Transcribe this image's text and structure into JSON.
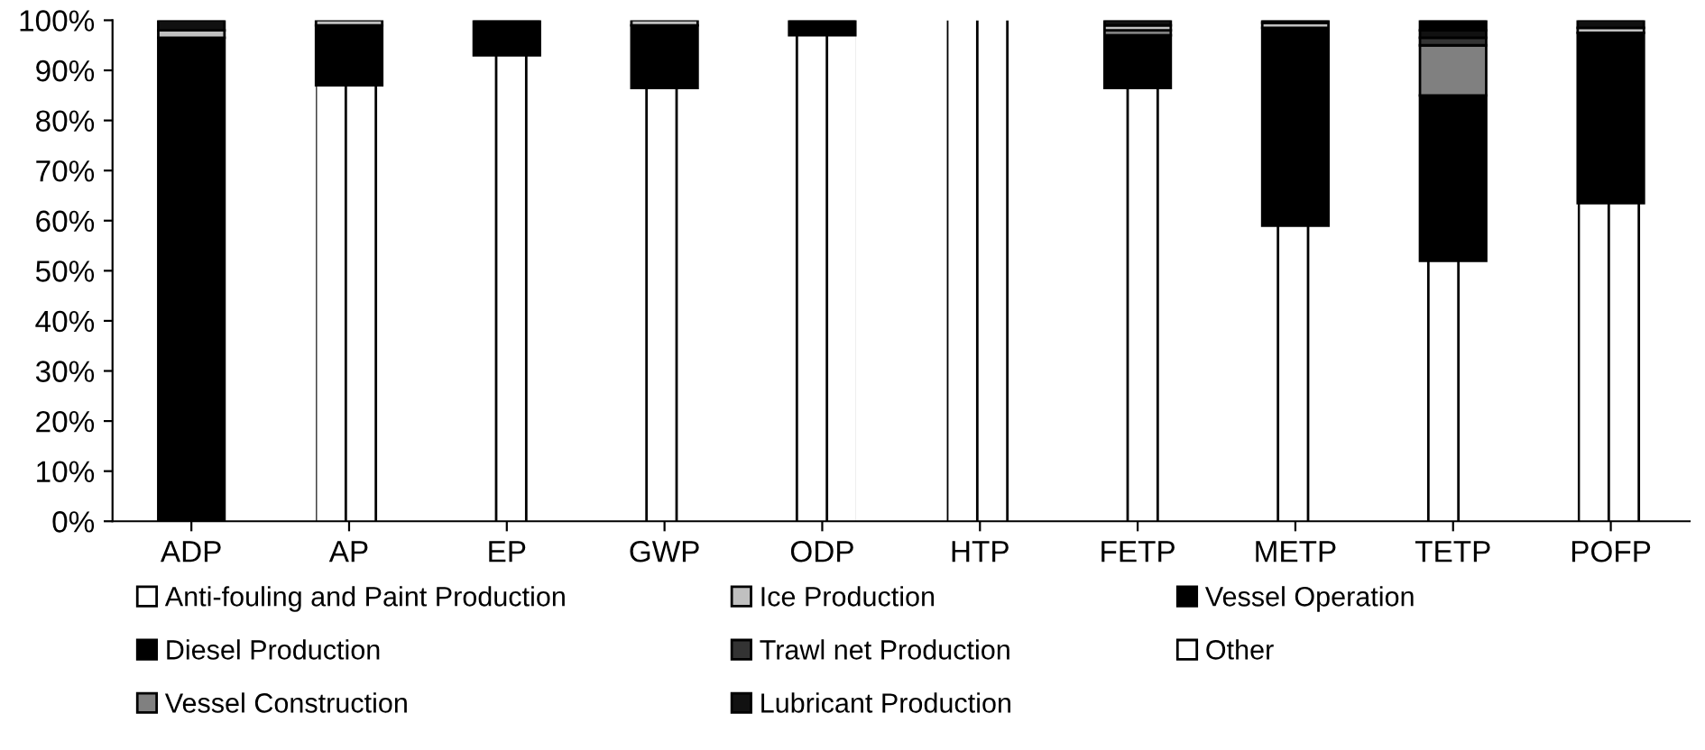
{
  "chart_data": {
    "type": "bar",
    "stacked": true,
    "categories": [
      "ADP",
      "AP",
      "EP",
      "GWP",
      "ODP",
      "HTP",
      "FETP",
      "METP",
      "TETP",
      "POFP"
    ],
    "series": [
      {
        "name": "Anti-fouling and Paint Production",
        "color": "#ffffff",
        "values": [
          0,
          87,
          93,
          86.5,
          97,
          100,
          86.5,
          59,
          52,
          63.5
        ]
      },
      {
        "name": "Diesel Production",
        "color": "#000000",
        "values": [
          96.5,
          12,
          7,
          12.5,
          3,
          0,
          10.5,
          39.5,
          33,
          34
        ]
      },
      {
        "name": "Vessel Construction",
        "color": "#808080",
        "values": [
          0,
          0,
          0,
          0,
          0,
          0,
          1,
          0,
          10,
          0
        ]
      },
      {
        "name": "Ice Production",
        "color": "#c0c0c0",
        "values": [
          1.5,
          1,
          0,
          1,
          0,
          0,
          1,
          1,
          0,
          1
        ]
      },
      {
        "name": "Trawl net Production",
        "color": "#333333",
        "values": [
          0,
          0,
          0,
          0,
          0,
          0,
          0,
          0,
          1.5,
          0
        ]
      },
      {
        "name": "Lubricant Production",
        "color": "#111111",
        "values": [
          2,
          0,
          0,
          0,
          0,
          0,
          1,
          0.5,
          1.5,
          1.5
        ]
      },
      {
        "name": "Vessel Operation",
        "color": "#000000",
        "values": [
          0,
          0,
          0,
          0,
          0,
          0,
          0,
          0,
          2,
          0
        ]
      },
      {
        "name": "Other",
        "color": "#ffffff",
        "values": [
          0,
          0,
          0,
          0,
          0,
          0,
          0,
          0,
          0,
          0
        ]
      }
    ],
    "ylim": [
      0,
      100
    ],
    "yticks": [
      {
        "value": 0,
        "label": "0%"
      },
      {
        "value": 10,
        "label": "10%"
      },
      {
        "value": 20,
        "label": "20%"
      },
      {
        "value": 30,
        "label": "30%"
      },
      {
        "value": 40,
        "label": "40%"
      },
      {
        "value": 50,
        "label": "50%"
      },
      {
        "value": 60,
        "label": "60%"
      },
      {
        "value": 70,
        "label": "70%"
      },
      {
        "value": 80,
        "label": "80%"
      },
      {
        "value": 90,
        "label": "90%"
      },
      {
        "value": 100,
        "label": "100%"
      }
    ],
    "grid": false,
    "legend": "bottom"
  }
}
